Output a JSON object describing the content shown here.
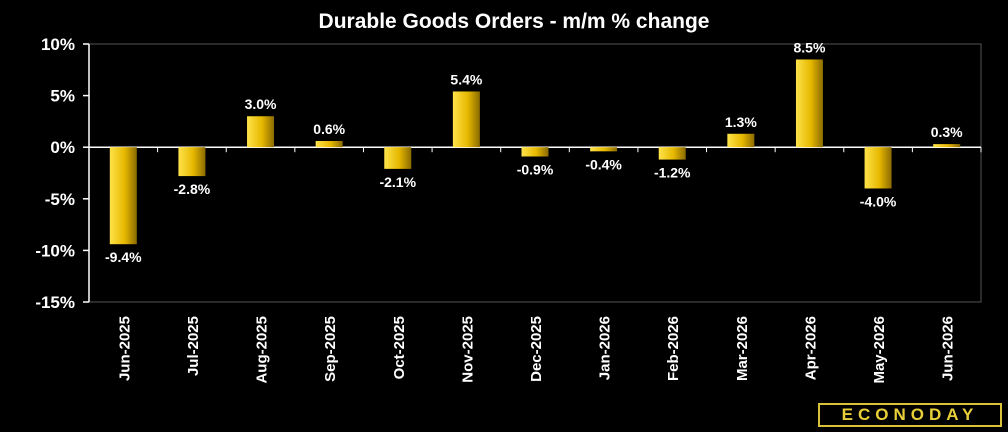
{
  "chart_data": {
    "type": "bar",
    "title": "Durable Goods Orders - m/m % change",
    "categories": [
      "Jun-2025",
      "Jul-2025",
      "Aug-2025",
      "Sep-2025",
      "Oct-2025",
      "Nov-2025",
      "Dec-2025",
      "Jan-2026",
      "Feb-2026",
      "Mar-2026",
      "Apr-2026",
      "May-2026",
      "Jun-2026"
    ],
    "values": [
      -9.4,
      -2.8,
      3.0,
      0.6,
      -2.1,
      5.4,
      -0.9,
      -0.4,
      -1.2,
      1.3,
      8.5,
      -4.0,
      0.3
    ],
    "data_labels": [
      "-9.4%",
      "-2.8%",
      "3.0%",
      "0.6%",
      "-2.1%",
      "5.4%",
      "-0.9%",
      "-0.4%",
      "-1.2%",
      "1.3%",
      "8.5%",
      "-4.0%",
      "0.3%"
    ],
    "ylim": [
      -15,
      10
    ],
    "yticks": [
      10,
      5,
      0,
      -5,
      -10,
      -15
    ],
    "ytick_labels": [
      "10%",
      "5%",
      "0%",
      "-5%",
      "-10%",
      "-15%"
    ],
    "xlabel": "",
    "ylabel": "",
    "grid": false,
    "bar_color": "#f2c300",
    "background_color": "#000000",
    "axis_color": "#ffffff"
  },
  "logo_text": "ECONODAY"
}
